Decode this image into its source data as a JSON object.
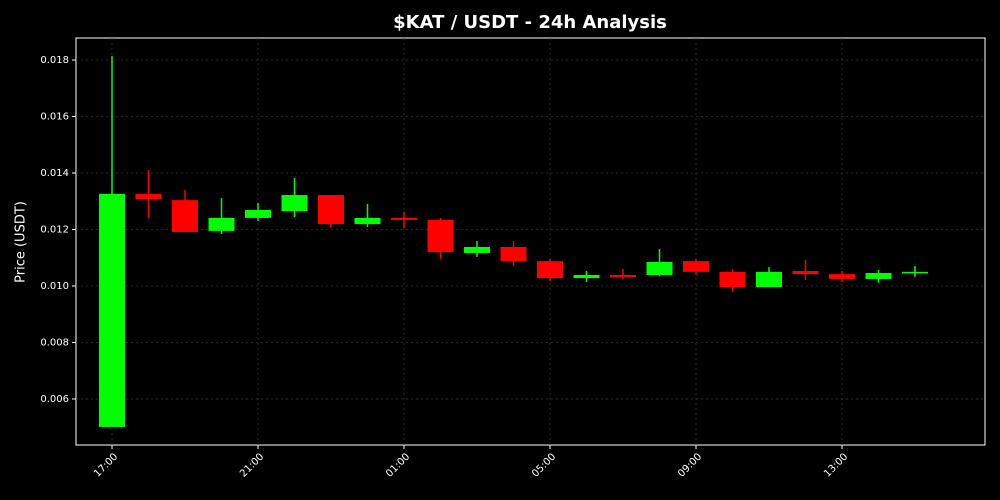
{
  "chart_data": {
    "type": "candlestick",
    "title": "$KAT / USDT - 24h Analysis",
    "y_label": "Price (USDT)",
    "categories": [
      "17:00",
      null,
      null,
      null,
      "21:00",
      null,
      null,
      null,
      "01:00",
      null,
      null,
      null,
      "05:00",
      null,
      null,
      null,
      "09:00",
      null,
      null,
      null,
      "13:00",
      null,
      null
    ],
    "open": [
      0.00501,
      0.01326,
      0.01304,
      0.01195,
      0.01241,
      0.01265,
      0.01322,
      0.01219,
      0.01241,
      0.01234,
      0.01117,
      0.01138,
      0.01088,
      0.01028,
      0.01039,
      0.01039,
      0.01088,
      0.0105,
      0.00996,
      0.01053,
      0.01042,
      0.01025,
      0.01046
    ],
    "high": [
      0.01814,
      0.01411,
      0.0134,
      0.01311,
      0.01294,
      0.01382,
      0.01322,
      0.0129,
      0.01262,
      0.01241,
      0.01159,
      0.01159,
      0.01096,
      0.01053,
      0.0106,
      0.01131,
      0.01096,
      0.0106,
      0.01067,
      0.01092,
      0.01053,
      0.01057,
      0.01071
    ],
    "low": [
      0.00501,
      0.01241,
      0.0119,
      0.01184,
      0.0123,
      0.01244,
      0.01205,
      0.01209,
      0.01205,
      0.01096,
      0.01103,
      0.01071,
      0.01018,
      0.01014,
      0.01025,
      0.01035,
      0.01039,
      0.00979,
      0.00996,
      0.01021,
      0.01014,
      0.01011,
      0.01032
    ],
    "close": [
      0.01326,
      0.01308,
      0.01191,
      0.01241,
      0.01269,
      0.01322,
      0.01219,
      0.01241,
      0.01234,
      0.0112,
      0.01138,
      0.01088,
      0.01028,
      0.01039,
      0.01032,
      0.01085,
      0.0105,
      0.00996,
      0.0105,
      0.01042,
      0.01025,
      0.01046,
      0.0105
    ],
    "up_color": "#00ff00",
    "down_color": "#ff0000",
    "ylim": [
      0.00437,
      0.01878
    ],
    "yticks": [
      0.006,
      0.008,
      {
        "value": 0.01,
        "label": "0.010"
      },
      0.012,
      0.014,
      0.016,
      0.018
    ],
    "grid": true
  }
}
